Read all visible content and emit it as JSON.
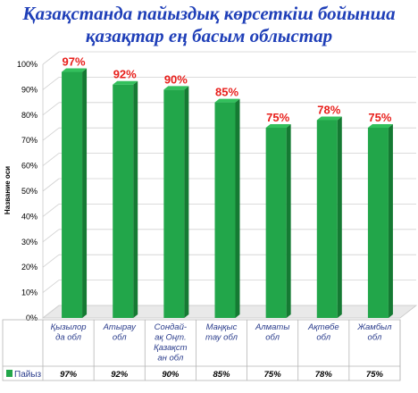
{
  "chart_data": {
    "type": "bar",
    "title_lines": [
      "Қазақстанда пайыздық көрсеткіш бойынша",
      "қазақтар ең басым облыстар"
    ],
    "ylabel": "Название оси",
    "categories": [
      [
        "Қызылор",
        "да обл"
      ],
      [
        "Атырау",
        "обл"
      ],
      [
        "Сондай-",
        "ақ Оңт.",
        "Қазақст",
        "ан обл"
      ],
      [
        "Маңқыс",
        "тау обл"
      ],
      [
        "Алматы",
        "обл"
      ],
      [
        "Ақтөбе",
        "обл"
      ],
      [
        "Жамбыл",
        "обл"
      ]
    ],
    "series": [
      {
        "name": "Пайыз",
        "values": [
          97,
          92,
          90,
          85,
          75,
          78,
          75
        ],
        "value_labels": [
          "97%",
          "92%",
          "90%",
          "85%",
          "75%",
          "78%",
          "75%"
        ],
        "color": "#22a64a"
      }
    ],
    "ylim": [
      0,
      100
    ],
    "yticks": [
      "0%",
      "10%",
      "20%",
      "30%",
      "40%",
      "50%",
      "60%",
      "70%",
      "80%",
      "90%",
      "100%"
    ],
    "grid": true,
    "legend": "data-table-below",
    "colors": {
      "title": "#1f3fb8",
      "value_label": "#e8201c",
      "category_label": "#2b3d8c"
    }
  }
}
